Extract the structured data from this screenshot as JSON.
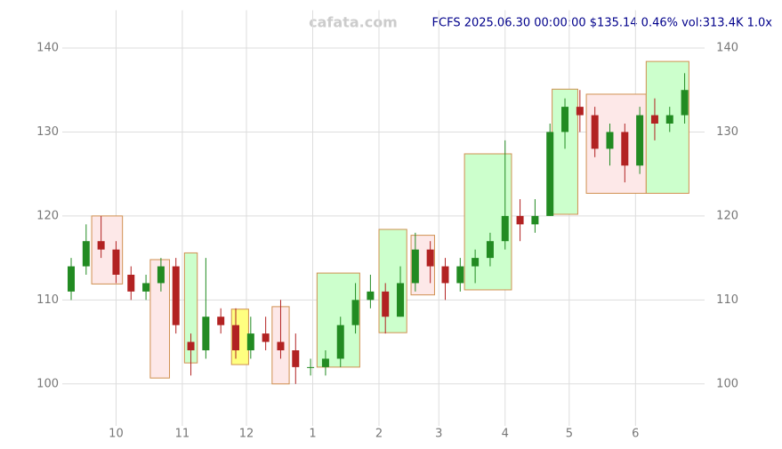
{
  "chart_data": {
    "type": "candlestick",
    "title": "FCFS 2025.06.30 00:00:00 $135.14 0.46% vol:313.4K 1.0x",
    "watermark": "cafata.com",
    "xlim": [
      0,
      293
    ],
    "xticks": [
      {
        "value": 21,
        "label": "10"
      },
      {
        "value": 52,
        "label": "11"
      },
      {
        "value": 82,
        "label": "12"
      },
      {
        "value": 113,
        "label": "1"
      },
      {
        "value": 144,
        "label": "2"
      },
      {
        "value": 172,
        "label": "3"
      },
      {
        "value": 203,
        "label": "4"
      },
      {
        "value": 233,
        "label": "5"
      },
      {
        "value": 264,
        "label": "6"
      }
    ],
    "ylim": [
      95,
      144.5
    ],
    "yticks": [
      100,
      110,
      120,
      130,
      140
    ],
    "grid": true,
    "up_color": "#228b22",
    "down_color": "#b22222",
    "x": [
      0,
      7,
      14,
      21,
      28,
      35,
      42,
      49,
      56,
      63,
      70,
      77,
      84,
      91,
      98,
      105,
      112,
      119,
      126,
      133,
      140,
      147,
      154,
      161,
      168,
      175,
      182,
      189,
      196,
      203,
      210,
      217,
      224,
      231,
      238,
      245,
      252,
      259,
      266,
      273,
      280,
      287
    ],
    "open": [
      111,
      114,
      117,
      116,
      113,
      111,
      112,
      114,
      105,
      104,
      108,
      107,
      104,
      106,
      105,
      104,
      102,
      102,
      103,
      107,
      110,
      111,
      108,
      112,
      116,
      114,
      112,
      114,
      115,
      117,
      120,
      119,
      120,
      130,
      133,
      132,
      128,
      130,
      126,
      132,
      131,
      132
    ],
    "high": [
      115,
      119,
      120,
      117,
      114,
      113,
      115,
      115,
      106,
      115,
      109,
      109,
      108,
      108,
      110,
      106,
      103,
      104,
      108,
      112,
      113,
      112,
      114,
      118,
      117,
      115,
      115,
      116,
      118,
      129,
      122,
      122,
      131,
      134,
      135,
      133,
      131,
      131,
      133,
      134,
      133,
      137
    ],
    "low": [
      110,
      113,
      115,
      112,
      110,
      110,
      111,
      106,
      101,
      103,
      106,
      103,
      103,
      104,
      103,
      100,
      101,
      101,
      102,
      106,
      109,
      106,
      108,
      111,
      112,
      110,
      111,
      112,
      114,
      116,
      117,
      118,
      120,
      128,
      130,
      127,
      126,
      124,
      125,
      129,
      130,
      131
    ],
    "close": [
      114,
      117,
      116,
      113,
      111,
      112,
      114,
      107,
      104,
      108,
      107,
      104,
      106,
      105,
      104,
      102,
      102,
      103,
      107,
      110,
      111,
      108,
      112,
      116,
      114,
      112,
      114,
      115,
      117,
      120,
      119,
      120,
      130,
      133,
      132,
      128,
      130,
      126,
      132,
      131,
      132,
      135
    ],
    "boxes": [
      {
        "x": [
          9.6,
          24
        ],
        "y": [
          111.9,
          120
        ],
        "color": "#fde8e8"
      },
      {
        "x": [
          37,
          46
        ],
        "y": [
          100.7,
          114.8
        ],
        "color": "#fde8e8"
      },
      {
        "x": [
          53,
          59
        ],
        "y": [
          102.5,
          115.6
        ],
        "color": "#ccffcc"
      },
      {
        "x": [
          75,
          83
        ],
        "y": [
          102.3,
          108.9
        ],
        "color": "#ffff80"
      },
      {
        "x": [
          94,
          102
        ],
        "y": [
          100,
          109.2
        ],
        "color": "#fde8e8"
      },
      {
        "x": [
          115,
          135
        ],
        "y": [
          102,
          113.2
        ],
        "color": "#ccffcc"
      },
      {
        "x": [
          144,
          157
        ],
        "y": [
          106.1,
          118.4
        ],
        "color": "#ccffcc"
      },
      {
        "x": [
          159,
          170
        ],
        "y": [
          110.6,
          117.7
        ],
        "color": "#fde8e8"
      },
      {
        "x": [
          184,
          206
        ],
        "y": [
          111.2,
          127.4
        ],
        "color": "#ccffcc"
      },
      {
        "x": [
          225,
          237
        ],
        "y": [
          120.2,
          135.1
        ],
        "color": "#ccffcc"
      },
      {
        "x": [
          241,
          269
        ],
        "y": [
          122.7,
          134.5
        ],
        "color": "#fde8e8"
      },
      {
        "x": [
          269,
          289
        ],
        "y": [
          122.7,
          138.4
        ],
        "color": "#ccffcc"
      }
    ]
  }
}
